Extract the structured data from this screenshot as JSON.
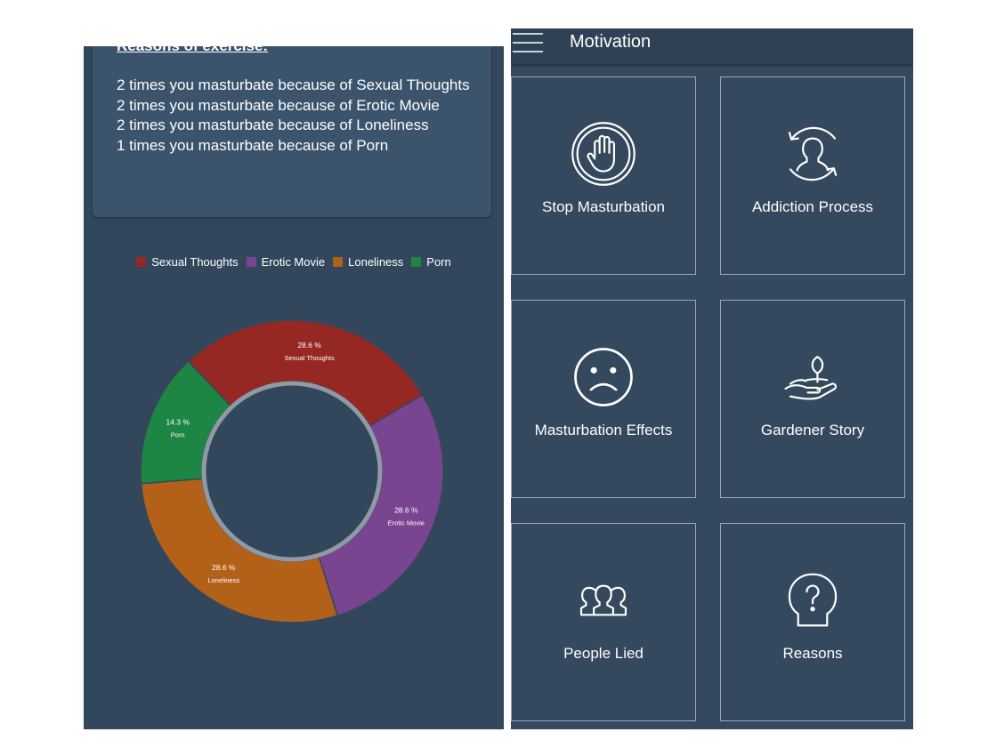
{
  "exercise": {
    "heading": "Reasons of exercise:",
    "lines": [
      "2 times you masturbate because of Sexual Thoughts",
      "2 times you masturbate because of Erotic Movie",
      "2 times you masturbate because of Loneliness",
      "1 times you masturbate because of Porn"
    ]
  },
  "legend": [
    "Sexual Thoughts",
    "Erotic Movie",
    "Loneliness",
    "Porn"
  ],
  "chart_data": {
    "type": "pie",
    "donut": true,
    "categories": [
      "Sexual Thoughts",
      "Erotic Movie",
      "Loneliness",
      "Porn"
    ],
    "values": [
      28.6,
      28.6,
      28.6,
      14.3
    ],
    "value_labels": [
      "28.6 %",
      "28.6 %",
      "28.6 %",
      "14.3 %"
    ],
    "colors": [
      "#952823",
      "#7a4590",
      "#b36119",
      "#1e8645"
    ],
    "legend_position": "top"
  },
  "app": {
    "title": "Motivation",
    "menu_icon": "hamburger-menu-icon"
  },
  "tiles": [
    {
      "label": "Stop Masturbation",
      "icon": "stop-hand-icon"
    },
    {
      "label": "Addiction Process",
      "icon": "addiction-cycle-icon"
    },
    {
      "label": "Masturbation Effects",
      "icon": "sad-face-icon"
    },
    {
      "label": "Gardener Story",
      "icon": "plant-in-hand-icon"
    },
    {
      "label": "People Lied",
      "icon": "people-group-icon"
    },
    {
      "label": "Reasons",
      "icon": "head-question-icon"
    }
  ]
}
